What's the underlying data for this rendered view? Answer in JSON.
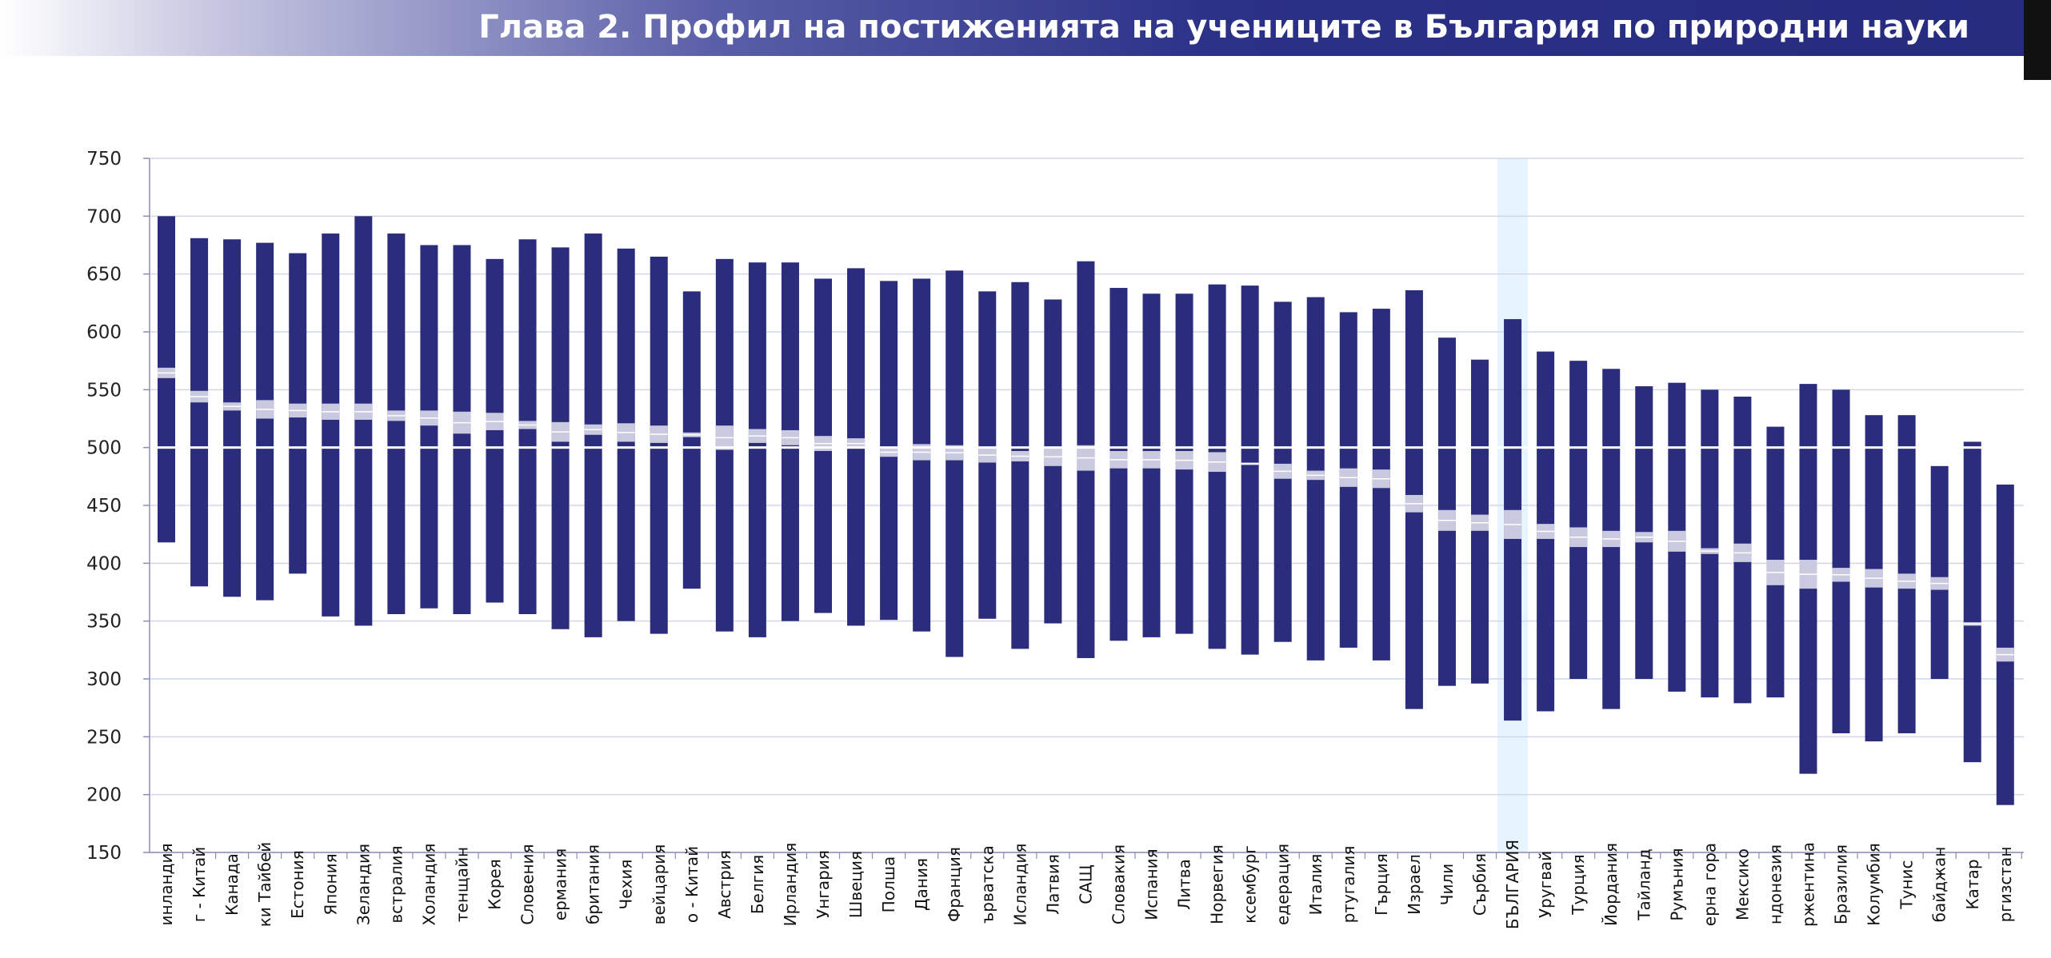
{
  "header": {
    "title": "Глава 2. Профил на постиженията на учениците в България по природни науки"
  },
  "colors": {
    "range_bar": "#2b2d7c",
    "mean_band": "#c9cadf",
    "highlight": "#e6f5fd",
    "reference_line": "#ffffff",
    "grid": "#d2d6e8"
  },
  "chart_data": {
    "type": "bar",
    "subtype": "range-with-mean-band",
    "title": "",
    "xlabel": "",
    "ylabel": "",
    "ylim": [
      150,
      750
    ],
    "yticks": [
      150,
      200,
      250,
      300,
      350,
      400,
      450,
      500,
      550,
      600,
      650,
      700,
      750
    ],
    "reference_value": 500,
    "grid": true,
    "highlight_category": "БЪЛГАРИЯ",
    "categories": [
      "инландия",
      "г - Китай",
      "Канада",
      "ки Тайбей",
      "Естония",
      "Япония",
      "Зеландия",
      "встралия",
      "Холандия",
      "тенщайн",
      "Корея",
      "Словения",
      "ермания",
      "британия",
      "Чехия",
      "вейцария",
      "о - Китай",
      "Австрия",
      "Белгия",
      "Ирландия",
      "Унгария",
      "Швеция",
      "Полша",
      "Дания",
      "Франция",
      "ърватска",
      "Исландия",
      "Латвия",
      "САЩ",
      "Словакия",
      "Испания",
      "Литва",
      "Норвегия",
      "ксембург",
      "едерация",
      "Италия",
      "ртугалия",
      "Гърция",
      "Израел",
      "Чили",
      "Сърбия",
      "БЪЛГАРИЯ",
      "Уругвай",
      "Турция",
      "Йордания",
      "Тайланд",
      "Румъния",
      "ерна гора",
      "Мексико",
      "ндонезия",
      "ржентина",
      "Бразилия",
      "Колумбия",
      "Тунис",
      "байджан",
      "Катар",
      "ргизстан"
    ],
    "low": [
      418,
      380,
      371,
      368,
      391,
      354,
      346,
      356,
      361,
      356,
      366,
      356,
      343,
      336,
      350,
      339,
      378,
      341,
      336,
      350,
      357,
      346,
      351,
      341,
      319,
      352,
      326,
      348,
      318,
      333,
      336,
      339,
      326,
      321,
      332,
      316,
      327,
      316,
      274,
      294,
      296,
      264,
      272,
      300,
      274,
      300,
      289,
      284,
      279,
      284,
      218,
      253,
      246,
      253,
      300,
      228,
      191
    ],
    "high": [
      700,
      681,
      680,
      677,
      668,
      685,
      700,
      685,
      675,
      675,
      663,
      680,
      673,
      685,
      672,
      665,
      635,
      663,
      660,
      660,
      646,
      655,
      644,
      646,
      653,
      635,
      643,
      628,
      661,
      638,
      633,
      633,
      641,
      640,
      626,
      630,
      617,
      620,
      636,
      595,
      576,
      611,
      583,
      575,
      568,
      553,
      556,
      550,
      544,
      518,
      555,
      550,
      528,
      528,
      484,
      505,
      468
    ],
    "mean_low": [
      560,
      539,
      532,
      525,
      526,
      524,
      524,
      523,
      519,
      512,
      515,
      516,
      505,
      511,
      505,
      504,
      509,
      498,
      504,
      502,
      497,
      499,
      492,
      489,
      489,
      487,
      488,
      484,
      480,
      482,
      482,
      481,
      479,
      485,
      473,
      472,
      466,
      465,
      444,
      428,
      428,
      421,
      421,
      414,
      414,
      418,
      410,
      408,
      401,
      381,
      378,
      384,
      379,
      378,
      377,
      346,
      315
    ],
    "mean_high": [
      569,
      549,
      539,
      541,
      538,
      538,
      538,
      532,
      532,
      531,
      530,
      523,
      522,
      520,
      521,
      519,
      513,
      519,
      516,
      515,
      510,
      508,
      500,
      503,
      502,
      500,
      497,
      500,
      502,
      497,
      497,
      497,
      496,
      487,
      486,
      480,
      482,
      481,
      459,
      446,
      442,
      446,
      434,
      431,
      428,
      427,
      428,
      413,
      417,
      403,
      403,
      396,
      395,
      391,
      388,
      349,
      327
    ]
  }
}
